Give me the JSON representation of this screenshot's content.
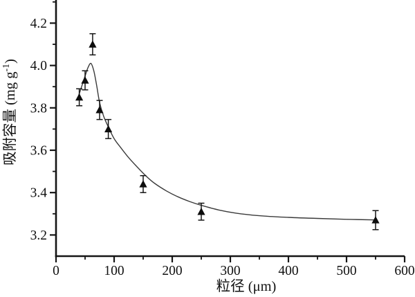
{
  "figure": {
    "background": "#ffffff",
    "ink_color": "#151515",
    "curve_color": "#3a3a3a",
    "marker_color": "#0d0d0d"
  },
  "chart_data": {
    "type": "scatter",
    "title": "",
    "xlabel": "粒径 (μm)",
    "ylabel": "吸附容量 (mg g⁻¹)",
    "ylabel_parts": {
      "prefix": "吸附容量 (mg g",
      "superscript": "-1",
      "suffix": ")"
    },
    "xlim": [
      0,
      600
    ],
    "ylim": [
      3.1,
      4.3
    ],
    "grid": false,
    "legend": "none",
    "x_ticks": {
      "major": [
        0,
        100,
        200,
        300,
        400,
        500,
        600
      ],
      "major_labels": [
        "0",
        "100",
        "200",
        "300",
        "400",
        "500",
        "600"
      ],
      "minor": [
        50,
        150,
        250,
        350,
        450,
        550
      ]
    },
    "y_ticks": {
      "major": [
        3.2,
        3.4,
        3.6,
        3.8,
        4.0,
        4.2
      ],
      "major_labels": [
        "3.2",
        "3.4",
        "3.6",
        "3.8",
        "4.0",
        "4.2"
      ],
      "minor": [
        3.3,
        3.5,
        3.7,
        3.9,
        4.1,
        4.3
      ]
    },
    "series": [
      {
        "name": "吸附容量",
        "marker": "filled-triangle-up",
        "error_bars": true,
        "points": [
          {
            "x": 40,
            "y": 3.85,
            "err": 0.04
          },
          {
            "x": 50,
            "y": 3.93,
            "err": 0.045
          },
          {
            "x": 63,
            "y": 4.1,
            "err": 0.05
          },
          {
            "x": 75,
            "y": 3.79,
            "err": 0.045
          },
          {
            "x": 90,
            "y": 3.7,
            "err": 0.045
          },
          {
            "x": 150,
            "y": 3.44,
            "err": 0.04
          },
          {
            "x": 250,
            "y": 3.31,
            "err": 0.04
          },
          {
            "x": 550,
            "y": 3.27,
            "err": 0.045
          }
        ]
      }
    ],
    "fit_curve": {
      "description": "smooth fitted trend curve through the data points, peaking near x=60 then decaying to a plateau",
      "points": [
        [
          38,
          3.85
        ],
        [
          44,
          3.9
        ],
        [
          50,
          3.95
        ],
        [
          55,
          3.99
        ],
        [
          60,
          4.01
        ],
        [
          65,
          3.975
        ],
        [
          70,
          3.905
        ],
        [
          75,
          3.825
        ],
        [
          82,
          3.76
        ],
        [
          90,
          3.71
        ],
        [
          100,
          3.655
        ],
        [
          112,
          3.61
        ],
        [
          125,
          3.565
        ],
        [
          140,
          3.52
        ],
        [
          155,
          3.478
        ],
        [
          170,
          3.443
        ],
        [
          190,
          3.408
        ],
        [
          210,
          3.38
        ],
        [
          230,
          3.358
        ],
        [
          250,
          3.34
        ],
        [
          280,
          3.318
        ],
        [
          310,
          3.303
        ],
        [
          350,
          3.291
        ],
        [
          400,
          3.283
        ],
        [
          450,
          3.278
        ],
        [
          500,
          3.274
        ],
        [
          550,
          3.271
        ]
      ]
    }
  }
}
